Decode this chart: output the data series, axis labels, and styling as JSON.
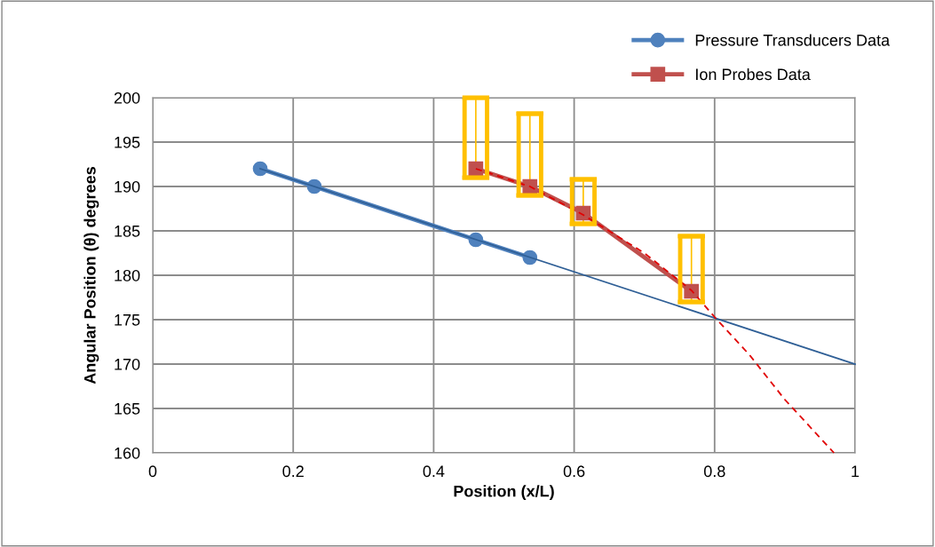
{
  "chart_data": {
    "type": "line",
    "xlabel": "Position (x/L)",
    "ylabel": "Angular Position (θ) degrees",
    "xlim": [
      0,
      1
    ],
    "xticks": [
      0,
      0.2,
      0.4,
      0.6,
      0.8,
      1
    ],
    "ylim": [
      160,
      200
    ],
    "yticks": [
      160,
      165,
      170,
      175,
      180,
      185,
      190,
      195,
      200
    ],
    "grid": true,
    "legend": "top right",
    "series": [
      {
        "name": "Pressure Transducers Data",
        "color": "#4f81bd",
        "marker": "circle",
        "x": [
          0.153,
          0.23,
          0.46,
          0.537
        ],
        "values": [
          192,
          190,
          184,
          182
        ]
      },
      {
        "name": "Ion Probes Data",
        "color": "#c0504d",
        "marker": "square",
        "x": [
          0.46,
          0.537,
          0.613,
          0.767
        ],
        "values": [
          192,
          190,
          187,
          178.2
        ],
        "errors": [
          [
            191,
            200
          ],
          [
            189,
            198.2
          ],
          [
            185.8,
            190.8
          ],
          [
            177,
            184.4
          ]
        ]
      },
      {
        "color": "#2f5f96",
        "marker": "none",
        "line_style": "solid",
        "x": [
          0.153,
          1
        ],
        "values": [
          192,
          170
        ]
      },
      {
        "color": "#e00000",
        "marker": "none",
        "line_style": "dashed",
        "x": [
          0.46,
          0.537,
          0.613,
          0.7,
          0.767,
          0.8,
          0.85,
          0.9,
          0.97
        ],
        "values": [
          192,
          190,
          186.8,
          182.5,
          178.3,
          175.3,
          171,
          166,
          160
        ]
      }
    ]
  }
}
